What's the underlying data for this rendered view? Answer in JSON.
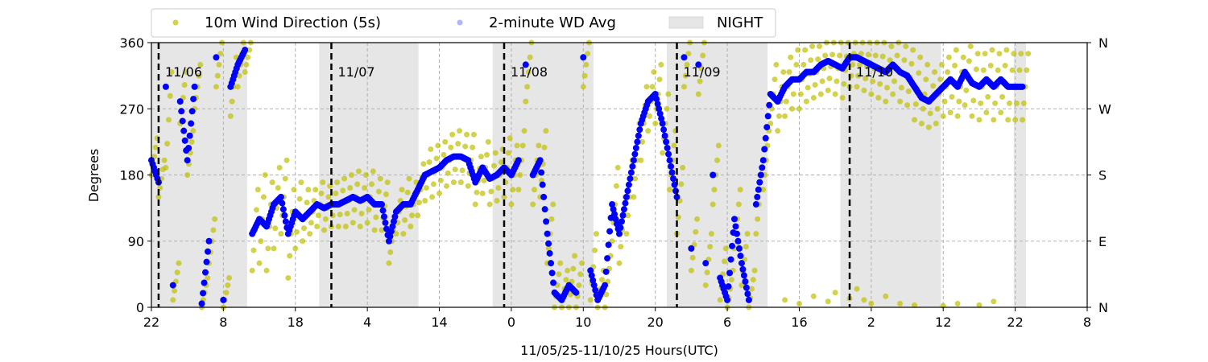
{
  "chart_data": {
    "type": "scatter",
    "title": "",
    "xlabel": "11/05/25-11/10/25  Hours(UTC)",
    "ylabel": "Degrees",
    "xlim": [
      0,
      130
    ],
    "ylim": [
      0,
      360
    ],
    "x_units": "hours since 11/05 22:00 UTC",
    "x_tick_hours": [
      0,
      10,
      20,
      30,
      40,
      50,
      60,
      70,
      80,
      90,
      100,
      110,
      120,
      130
    ],
    "x_tick_labels": [
      "22",
      "8",
      "18",
      "4",
      "14",
      "0",
      "10",
      "20",
      "6",
      "16",
      "2",
      "12",
      "22",
      "8"
    ],
    "y_ticks": [
      0,
      90,
      180,
      270,
      360
    ],
    "y_tick_labels": [
      "0",
      "90",
      "180",
      "270",
      "360"
    ],
    "y2_tick_labels": [
      "N",
      "E",
      "S",
      "W",
      "N"
    ],
    "grid": true,
    "legend": {
      "placement": "top",
      "entries": [
        "10m Wind Direction (5s)",
        "2-minute WD Avg",
        "NIGHT"
      ]
    },
    "colors": {
      "wd5s": "#bfbf00",
      "avg": "#0000ff",
      "night": "#e6e6e6"
    },
    "night_periods": [
      [
        0,
        13.3
      ],
      [
        23.3,
        37.1
      ],
      [
        47.4,
        61.4
      ],
      [
        71.6,
        85.6
      ],
      [
        95.7,
        109.7
      ],
      [
        119.8,
        121.5
      ]
    ],
    "day_markers": [
      {
        "hour": 1,
        "label": "11/06"
      },
      {
        "hour": 25,
        "label": "11/07"
      },
      {
        "hour": 49,
        "label": "11/08"
      },
      {
        "hour": 73,
        "label": "11/09"
      },
      {
        "hour": 97,
        "label": "11/10"
      }
    ],
    "series": [
      {
        "name": "2-minute WD Avg",
        "values": [
          200,
          170,
          300,
          30,
          280,
          200,
          300,
          5,
          90,
          340,
          10,
          300,
          330,
          350,
          100,
          120,
          110,
          140,
          150,
          100,
          130,
          120,
          130,
          140,
          135,
          140,
          140,
          145,
          150,
          145,
          150,
          140,
          140,
          90,
          130,
          140,
          140,
          160,
          180,
          185,
          190,
          200,
          205,
          205,
          200,
          170,
          190,
          175,
          180,
          190,
          180,
          200,
          330,
          180,
          200,
          100,
          20,
          10,
          30,
          20,
          340,
          50,
          10,
          30,
          140,
          100,
          150,
          200,
          250,
          280,
          290,
          250,
          200,
          150,
          340,
          80,
          330,
          60,
          180,
          40,
          10,
          120,
          60,
          10,
          140,
          200,
          290,
          280,
          300,
          310,
          310,
          320,
          320,
          330,
          335,
          330,
          325,
          340,
          340,
          335,
          330,
          325,
          320,
          330,
          320,
          315,
          300,
          285,
          280,
          290,
          300,
          310,
          300,
          320,
          305,
          300,
          310,
          300,
          310,
          300,
          300,
          300
        ]
      },
      {
        "name": "10m Wind Direction (5s)",
        "lo": [
          180,
          150,
          190,
          10,
          250,
          180,
          270,
          0,
          60,
          300,
          0,
          260,
          300,
          320,
          50,
          60,
          50,
          80,
          100,
          40,
          80,
          90,
          100,
          110,
          105,
          110,
          110,
          110,
          115,
          110,
          115,
          105,
          105,
          60,
          100,
          100,
          110,
          125,
          145,
          150,
          155,
          165,
          170,
          170,
          165,
          140,
          155,
          140,
          145,
          150,
          140,
          160,
          280,
          140,
          150,
          60,
          0,
          0,
          0,
          0,
          300,
          10,
          0,
          0,
          90,
          60,
          100,
          150,
          200,
          240,
          250,
          210,
          160,
          100,
          300,
          50,
          290,
          30,
          140,
          10,
          0,
          80,
          30,
          0,
          100,
          160,
          250,
          240,
          260,
          270,
          270,
          280,
          285,
          290,
          295,
          290,
          285,
          300,
          300,
          295,
          290,
          285,
          280,
          290,
          280,
          275,
          255,
          250,
          245,
          250,
          260,
          265,
          260,
          275,
          260,
          255,
          265,
          255,
          265,
          255,
          255,
          255
        ],
        "hi": [
          230,
          200,
          320,
          60,
          320,
          240,
          330,
          40,
          120,
          360,
          40,
          340,
          360,
          360,
          160,
          180,
          170,
          190,
          200,
          160,
          170,
          160,
          160,
          170,
          165,
          170,
          175,
          180,
          185,
          180,
          185,
          175,
          170,
          120,
          160,
          175,
          170,
          195,
          215,
          220,
          225,
          235,
          240,
          235,
          235,
          205,
          225,
          210,
          215,
          230,
          220,
          240,
          360,
          220,
          240,
          140,
          60,
          50,
          70,
          60,
          360,
          100,
          50,
          70,
          190,
          150,
          200,
          250,
          300,
          320,
          330,
          290,
          240,
          190,
          360,
          120,
          360,
          100,
          220,
          80,
          50,
          160,
          100,
          50,
          180,
          240,
          330,
          320,
          340,
          350,
          350,
          355,
          355,
          360,
          360,
          360,
          360,
          360,
          360,
          360,
          360,
          360,
          355,
          360,
          355,
          350,
          340,
          330,
          320,
          330,
          340,
          350,
          340,
          355,
          345,
          345,
          350,
          345,
          350,
          345,
          345,
          345
        ],
        "extra_points": [
          [
            88,
            10
          ],
          [
            90,
            5
          ],
          [
            92,
            15
          ],
          [
            94,
            8
          ],
          [
            95,
            20
          ],
          [
            97,
            12
          ],
          [
            98,
            25
          ],
          [
            99,
            10
          ],
          [
            100,
            5
          ],
          [
            102,
            15
          ],
          [
            104,
            5
          ],
          [
            106,
            3
          ],
          [
            110,
            2
          ],
          [
            112,
            5
          ],
          [
            115,
            3
          ],
          [
            117,
            8
          ]
        ]
      }
    ]
  }
}
